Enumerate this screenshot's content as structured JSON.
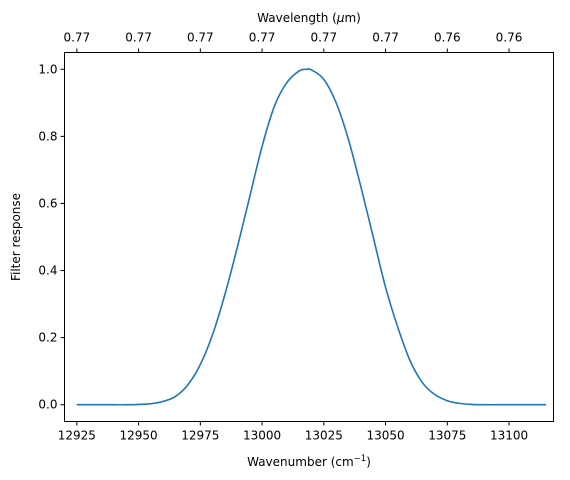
{
  "chart_data": {
    "type": "line",
    "xlabel": "Wavenumber (cm",
    "xlabel_sup": "−1",
    "xlabel_end": ")",
    "x2label": "Wavelength (",
    "x2label_mu": "μ",
    "x2label_end": "m)",
    "ylabel": "Filter response",
    "xlim": [
      12920,
      13118
    ],
    "ylim": [
      -0.05,
      1.05
    ],
    "xticks": [
      12925,
      12950,
      12975,
      13000,
      13025,
      13050,
      13075,
      13100
    ],
    "xtick_labels": [
      "12925",
      "12950",
      "12975",
      "13000",
      "13025",
      "13050",
      "13075",
      "13100"
    ],
    "yticks": [
      0.0,
      0.2,
      0.4,
      0.6,
      0.8,
      1.0
    ],
    "ytick_labels": [
      "0.0",
      "0.2",
      "0.4",
      "0.6",
      "0.8",
      "1.0"
    ],
    "x2ticks": [
      12925,
      12950,
      12975,
      13000,
      13025,
      13050,
      13075,
      13100
    ],
    "x2tick_labels": [
      "0.77",
      "0.77",
      "0.77",
      "0.77",
      "0.77",
      "0.77",
      "0.76",
      "0.76"
    ],
    "grid": false,
    "line_color": "#1f77b4",
    "series": [
      {
        "x": [
          12925,
          12930,
          12935,
          12940,
          12945,
          12950,
          12955,
          12960,
          12965,
          12970,
          12975,
          12980,
          12985,
          12990,
          12995,
          13000,
          13005,
          13010,
          13015,
          13018,
          13020,
          13025,
          13030,
          13035,
          13040,
          13045,
          13050,
          13055,
          13060,
          13065,
          13070,
          13075,
          13080,
          13085,
          13090,
          13095,
          13100,
          13105,
          13110,
          13115
        ],
        "y": [
          0.0,
          0.0,
          0.0,
          0.0,
          0.0,
          0.001,
          0.003,
          0.01,
          0.025,
          0.06,
          0.12,
          0.21,
          0.33,
          0.47,
          0.62,
          0.77,
          0.89,
          0.96,
          0.995,
          1.0,
          0.998,
          0.97,
          0.9,
          0.79,
          0.65,
          0.5,
          0.35,
          0.23,
          0.13,
          0.065,
          0.03,
          0.012,
          0.004,
          0.001,
          0.0,
          0.0,
          0.0,
          0.0,
          0.0,
          0.0
        ]
      }
    ]
  }
}
